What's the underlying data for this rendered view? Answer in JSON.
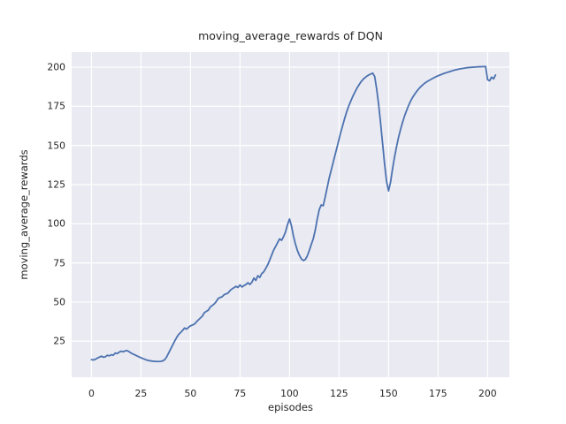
{
  "chart_data": {
    "type": "line",
    "title": "moving_average_rewards of DQN",
    "xlabel": "episodes",
    "ylabel": "moving_average_rewards",
    "xlim": [
      -10,
      211
    ],
    "ylim": [
      2,
      209.6
    ],
    "x_ticks": [
      0,
      25,
      50,
      75,
      100,
      125,
      150,
      175,
      200
    ],
    "y_ticks": [
      25,
      50,
      75,
      100,
      125,
      150,
      175,
      200
    ],
    "grid": true,
    "legend": false,
    "colors": {
      "line": "#4c72b0",
      "plot_background": "#eaeaf2",
      "figure_background": "#ffffff",
      "gridline": "#ffffff",
      "text": "#262626"
    },
    "series": [
      {
        "name": "moving_average_rewards",
        "points": [
          [
            0,
            13.2
          ],
          [
            1,
            13.0
          ],
          [
            2,
            13.4
          ],
          [
            3,
            14.2
          ],
          [
            4,
            14.8
          ],
          [
            5,
            15.4
          ],
          [
            6,
            14.8
          ],
          [
            7,
            15.0
          ],
          [
            8,
            16.0
          ],
          [
            9,
            15.6
          ],
          [
            10,
            16.3
          ],
          [
            11,
            16.0
          ],
          [
            12,
            17.4
          ],
          [
            13,
            17.1
          ],
          [
            14,
            18.0
          ],
          [
            15,
            18.6
          ],
          [
            16,
            18.2
          ],
          [
            17,
            18.8
          ],
          [
            18,
            19.0
          ],
          [
            19,
            18.3
          ],
          [
            20,
            17.4
          ],
          [
            21,
            16.8
          ],
          [
            22,
            16.2
          ],
          [
            23,
            15.6
          ],
          [
            24,
            15.0
          ],
          [
            25,
            14.4
          ],
          [
            26,
            13.9
          ],
          [
            27,
            13.4
          ],
          [
            28,
            12.9
          ],
          [
            29,
            12.6
          ],
          [
            30,
            12.4
          ],
          [
            31,
            12.2
          ],
          [
            32,
            12.1
          ],
          [
            33,
            12.0
          ],
          [
            34,
            12.0
          ],
          [
            35,
            12.1
          ],
          [
            36,
            12.4
          ],
          [
            37,
            13.2
          ],
          [
            38,
            15.0
          ],
          [
            39,
            17.5
          ],
          [
            40,
            20.0
          ],
          [
            41,
            22.5
          ],
          [
            42,
            25.0
          ],
          [
            43,
            27.3
          ],
          [
            44,
            29.3
          ],
          [
            45,
            30.5
          ],
          [
            46,
            31.8
          ],
          [
            47,
            33.4
          ],
          [
            48,
            32.7
          ],
          [
            49,
            33.8
          ],
          [
            50,
            34.8
          ],
          [
            51,
            35.3
          ],
          [
            52,
            35.9
          ],
          [
            53,
            37.3
          ],
          [
            54,
            38.6
          ],
          [
            55,
            39.8
          ],
          [
            56,
            41.0
          ],
          [
            57,
            43.2
          ],
          [
            58,
            44.0
          ],
          [
            59,
            44.8
          ],
          [
            60,
            46.8
          ],
          [
            61,
            47.8
          ],
          [
            62,
            48.8
          ],
          [
            63,
            50.3
          ],
          [
            64,
            52.3
          ],
          [
            65,
            52.9
          ],
          [
            66,
            53.4
          ],
          [
            67,
            54.7
          ],
          [
            68,
            55.2
          ],
          [
            69,
            55.8
          ],
          [
            70,
            57.4
          ],
          [
            71,
            58.4
          ],
          [
            72,
            59.2
          ],
          [
            73,
            60.0
          ],
          [
            74,
            59.3
          ],
          [
            75,
            60.9
          ],
          [
            76,
            59.6
          ],
          [
            77,
            60.5
          ],
          [
            78,
            61.2
          ],
          [
            79,
            62.3
          ],
          [
            80,
            61.2
          ],
          [
            81,
            62.6
          ],
          [
            82,
            65.3
          ],
          [
            83,
            63.8
          ],
          [
            84,
            66.8
          ],
          [
            85,
            65.7
          ],
          [
            86,
            68.2
          ],
          [
            87,
            69.3
          ],
          [
            88,
            71.5
          ],
          [
            89,
            73.8
          ],
          [
            90,
            76.8
          ],
          [
            91,
            80.0
          ],
          [
            92,
            83.2
          ],
          [
            93,
            85.5
          ],
          [
            94,
            88.0
          ],
          [
            95,
            90.3
          ],
          [
            96,
            89.4
          ],
          [
            97,
            91.8
          ],
          [
            98,
            94.8
          ],
          [
            99,
            99.5
          ],
          [
            100,
            103.0
          ],
          [
            101,
            98.5
          ],
          [
            102,
            92.0
          ],
          [
            103,
            87.0
          ],
          [
            104,
            82.8
          ],
          [
            105,
            79.8
          ],
          [
            106,
            77.5
          ],
          [
            107,
            76.5
          ],
          [
            108,
            77.2
          ],
          [
            109,
            79.5
          ],
          [
            110,
            83.0
          ],
          [
            111,
            86.8
          ],
          [
            112,
            90.5
          ],
          [
            113,
            96.0
          ],
          [
            114,
            103.0
          ],
          [
            115,
            109.0
          ],
          [
            116,
            112.0
          ],
          [
            117,
            111.5
          ],
          [
            118,
            117.0
          ],
          [
            119,
            123.0
          ],
          [
            120,
            129.0
          ],
          [
            121,
            134.0
          ],
          [
            122,
            139.0
          ],
          [
            123,
            144.0
          ],
          [
            124,
            149.0
          ],
          [
            125,
            154.0
          ],
          [
            126,
            159.0
          ],
          [
            127,
            163.5
          ],
          [
            128,
            168.0
          ],
          [
            129,
            172.0
          ],
          [
            130,
            175.5
          ],
          [
            131,
            178.5
          ],
          [
            132,
            181.5
          ],
          [
            133,
            184.0
          ],
          [
            134,
            186.5
          ],
          [
            135,
            188.5
          ],
          [
            136,
            190.5
          ],
          [
            137,
            192.0
          ],
          [
            138,
            193.2
          ],
          [
            139,
            194.2
          ],
          [
            140,
            195.0
          ],
          [
            141,
            195.6
          ],
          [
            142,
            196.2
          ],
          [
            143,
            194.0
          ],
          [
            144,
            186.0
          ],
          [
            145,
            176.0
          ],
          [
            146,
            164.0
          ],
          [
            147,
            151.0
          ],
          [
            148,
            138.0
          ],
          [
            149,
            127.0
          ],
          [
            150,
            121.0
          ],
          [
            151,
            126.5
          ],
          [
            152,
            135.0
          ],
          [
            153,
            142.5
          ],
          [
            154,
            149.0
          ],
          [
            155,
            155.0
          ],
          [
            156,
            160.0
          ],
          [
            157,
            164.5
          ],
          [
            158,
            168.5
          ],
          [
            159,
            172.0
          ],
          [
            160,
            175.2
          ],
          [
            161,
            178.0
          ],
          [
            162,
            180.4
          ],
          [
            163,
            182.4
          ],
          [
            164,
            184.2
          ],
          [
            165,
            185.8
          ],
          [
            166,
            187.2
          ],
          [
            167,
            188.4
          ],
          [
            168,
            189.5
          ],
          [
            169,
            190.4
          ],
          [
            170,
            191.2
          ],
          [
            171,
            191.9
          ],
          [
            172,
            192.6
          ],
          [
            173,
            193.3
          ],
          [
            174,
            193.9
          ],
          [
            175,
            194.5
          ],
          [
            176,
            195.0
          ],
          [
            177,
            195.5
          ],
          [
            178,
            196.0
          ],
          [
            179,
            196.4
          ],
          [
            180,
            196.8
          ],
          [
            181,
            197.2
          ],
          [
            182,
            197.6
          ],
          [
            183,
            198.0
          ],
          [
            184,
            198.3
          ],
          [
            185,
            198.6
          ],
          [
            186,
            198.9
          ],
          [
            187,
            199.1
          ],
          [
            188,
            199.3
          ],
          [
            189,
            199.5
          ],
          [
            190,
            199.7
          ],
          [
            191,
            199.8
          ],
          [
            192,
            199.9
          ],
          [
            193,
            200.0
          ],
          [
            194,
            200.1
          ],
          [
            195,
            200.2
          ],
          [
            196,
            200.25
          ],
          [
            197,
            200.3
          ],
          [
            198,
            200.35
          ],
          [
            199,
            200.4
          ],
          [
            200,
            192.0
          ],
          [
            201,
            191.3
          ],
          [
            202,
            193.6
          ],
          [
            203,
            192.5
          ],
          [
            204,
            195.0
          ]
        ]
      }
    ]
  }
}
